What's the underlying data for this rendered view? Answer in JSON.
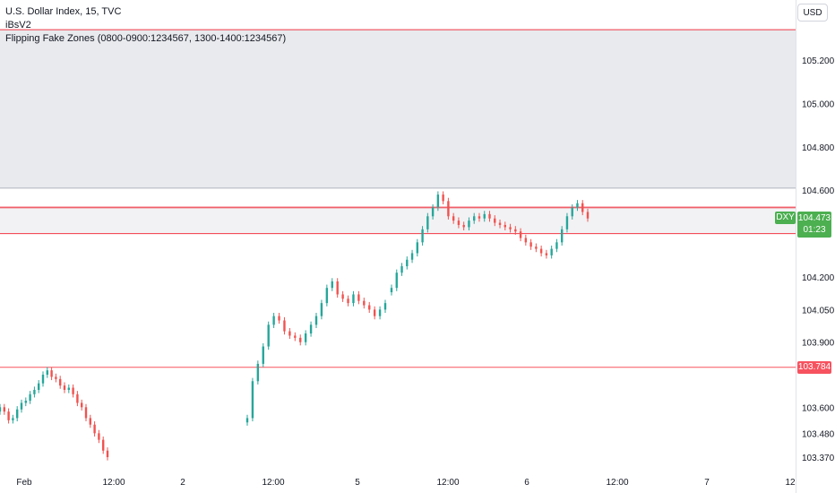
{
  "legend": {
    "symbol_line": "U.S. Dollar Index, 15, TVC",
    "indicator1": "iBsV2",
    "indicator2": "Flipping Fake Zones (0800-0900:1234567, 1300-1400:1234567)"
  },
  "currency_button": "USD",
  "last_price": {
    "symbol": "DXY",
    "price": "104.473",
    "countdown": "01:23"
  },
  "level_label": "103.784",
  "colors": {
    "up": "#26a69a",
    "down": "#ef5350",
    "zone_fill": "#e9eaed",
    "zone_line": "#f23645",
    "last_price": "#4caf50"
  },
  "chart_data": {
    "type": "candlestick",
    "y_ticks": [
      105.2,
      105.0,
      104.8,
      104.6,
      104.2,
      104.05,
      103.9,
      103.6,
      103.48,
      103.37
    ],
    "y_tick_labels": [
      "105.200",
      "105.000",
      "104.800",
      "104.600",
      "104.200",
      "104.050",
      "103.900",
      "103.600",
      "103.480",
      "103.370"
    ],
    "ylim": [
      103.33,
      105.33
    ],
    "x_tick_labels": [
      "Feb",
      "12:00",
      "2",
      "12:00",
      "5",
      "12:00",
      "6",
      "12:00",
      "7",
      "12"
    ],
    "zones": [
      {
        "top": 105.34,
        "bottom": 104.61,
        "fill": true
      },
      {
        "top": 104.52,
        "bottom": 104.4,
        "fill": false
      }
    ],
    "horizontal_levels": [
      104.52,
      104.4,
      103.784
    ],
    "last_price": 104.473,
    "close_series": [
      103.6,
      103.58,
      103.54,
      103.55,
      103.59,
      103.62,
      103.63,
      103.66,
      103.68,
      103.71,
      103.75,
      103.77,
      103.74,
      103.73,
      103.7,
      103.68,
      103.69,
      103.66,
      103.62,
      103.6,
      103.55,
      103.52,
      103.48,
      103.45,
      103.4,
      103.37,
      103.55,
      103.72,
      103.8,
      103.88,
      103.98,
      104.02,
      104.0,
      103.95,
      103.93,
      103.92,
      103.9,
      103.94,
      103.98,
      104.02,
      104.08,
      104.15,
      104.18,
      104.12,
      104.1,
      104.08,
      104.12,
      104.09,
      104.07,
      104.05,
      104.02,
      104.05,
      104.08,
      104.15,
      104.22,
      104.25,
      104.28,
      104.31,
      104.36,
      104.42,
      104.48,
      104.52,
      104.58,
      104.55,
      104.48,
      104.46,
      104.44,
      104.43,
      104.46,
      104.48,
      104.47,
      104.49,
      104.47,
      104.45,
      104.44,
      104.43,
      104.42,
      104.41,
      104.38,
      104.36,
      104.34,
      104.33,
      104.31,
      104.3,
      104.33,
      104.36,
      104.42,
      104.48,
      104.52,
      104.54,
      104.5,
      104.47
    ]
  }
}
